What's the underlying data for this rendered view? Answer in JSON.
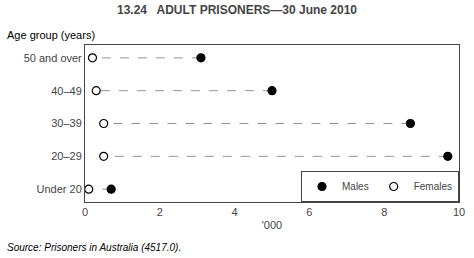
{
  "chart_data": {
    "type": "dumbbell",
    "title": "13.24   ADULT PRISONERS—30 June 2010",
    "categories": [
      "50 and over",
      "40–49",
      "30–39",
      "20–29",
      "Under 20"
    ],
    "series": [
      {
        "name": "Males",
        "color": "#000000",
        "marker": "filled",
        "values": [
          3.1,
          5.0,
          8.7,
          9.7,
          0.7
        ]
      },
      {
        "name": "Females",
        "color": "#000000",
        "marker": "open",
        "values": [
          0.2,
          0.3,
          0.5,
          0.5,
          0.1
        ]
      }
    ],
    "xlabel": "'000",
    "ylabel": "Age group (years)",
    "annotations": [
      "Source: Prisoners in Australia (4517.0)."
    ],
    "xlim": [
      0,
      10
    ],
    "xticks": [
      0,
      2,
      4,
      6,
      8,
      10
    ],
    "grid": false,
    "legend": "lower right"
  }
}
